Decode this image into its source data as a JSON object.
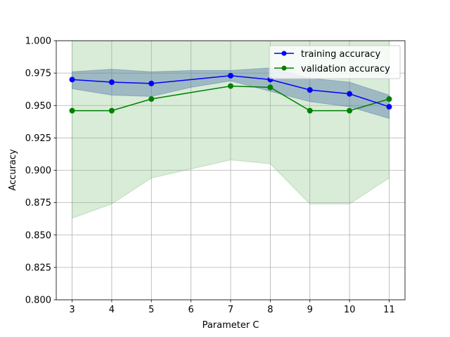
{
  "chart_data": {
    "type": "line",
    "xlabel": "Parameter C",
    "ylabel": "Accuracy",
    "x": [
      3,
      4,
      5,
      6,
      7,
      8,
      9,
      10,
      11
    ],
    "xlim": [
      2.6,
      11.4
    ],
    "ylim": [
      0.8,
      1.0
    ],
    "x_ticks": [
      "3",
      "4",
      "5",
      "6",
      "7",
      "8",
      "9",
      "10",
      "11"
    ],
    "y_ticks": [
      "0.800",
      "0.825",
      "0.850",
      "0.875",
      "0.900",
      "0.925",
      "0.950",
      "0.975",
      "1.000"
    ],
    "grid": true,
    "legend_position": "upper-right",
    "series": [
      {
        "name": "training accuracy",
        "color": "#0000ff",
        "band_color": "#4a6fa5",
        "markers_at": [
          3,
          4,
          5,
          7,
          8,
          9,
          10,
          11
        ],
        "values": [
          0.97,
          0.968,
          0.967,
          0.97,
          0.973,
          0.97,
          0.962,
          0.959,
          0.949
        ],
        "band_upper": [
          0.976,
          0.978,
          0.976,
          0.977,
          0.977,
          0.979,
          0.971,
          0.968,
          0.958
        ],
        "band_lower": [
          0.963,
          0.958,
          0.957,
          0.964,
          0.969,
          0.961,
          0.953,
          0.949,
          0.94
        ]
      },
      {
        "name": "validation accuracy",
        "color": "#008000",
        "band_color": "#7fbf7f",
        "markers_at": [
          3,
          4,
          5,
          7,
          8,
          9,
          10,
          11
        ],
        "values": [
          0.946,
          0.946,
          0.955,
          0.96,
          0.965,
          0.964,
          0.946,
          0.946,
          0.955
        ],
        "band_upper": [
          1.029,
          1.019,
          1.016,
          1.018,
          1.022,
          1.023,
          1.018,
          1.018,
          1.016
        ],
        "band_lower": [
          0.863,
          0.874,
          0.894,
          0.901,
          0.908,
          0.905,
          0.874,
          0.874,
          0.894
        ]
      }
    ]
  }
}
